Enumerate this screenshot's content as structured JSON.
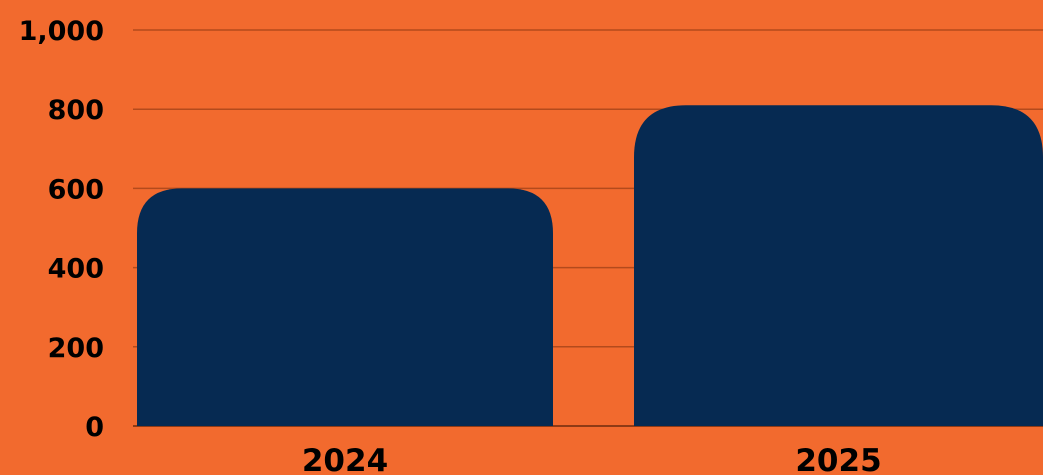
{
  "colors": {
    "background": "#F26A2E",
    "bar": "#062A52",
    "grid": "#B34A1C",
    "text": "#000000"
  },
  "chart_data": {
    "type": "bar",
    "title": "",
    "xlabel": "",
    "ylabel": "",
    "categories": [
      "2024",
      "2025"
    ],
    "values": [
      600,
      810
    ],
    "ylim": [
      0,
      1000
    ],
    "yticks": [
      0,
      200,
      400,
      600,
      800,
      1000
    ],
    "ytick_labels": [
      "0",
      "200",
      "400",
      "600",
      "800",
      "1,000"
    ],
    "grid": true,
    "legend": "none"
  }
}
